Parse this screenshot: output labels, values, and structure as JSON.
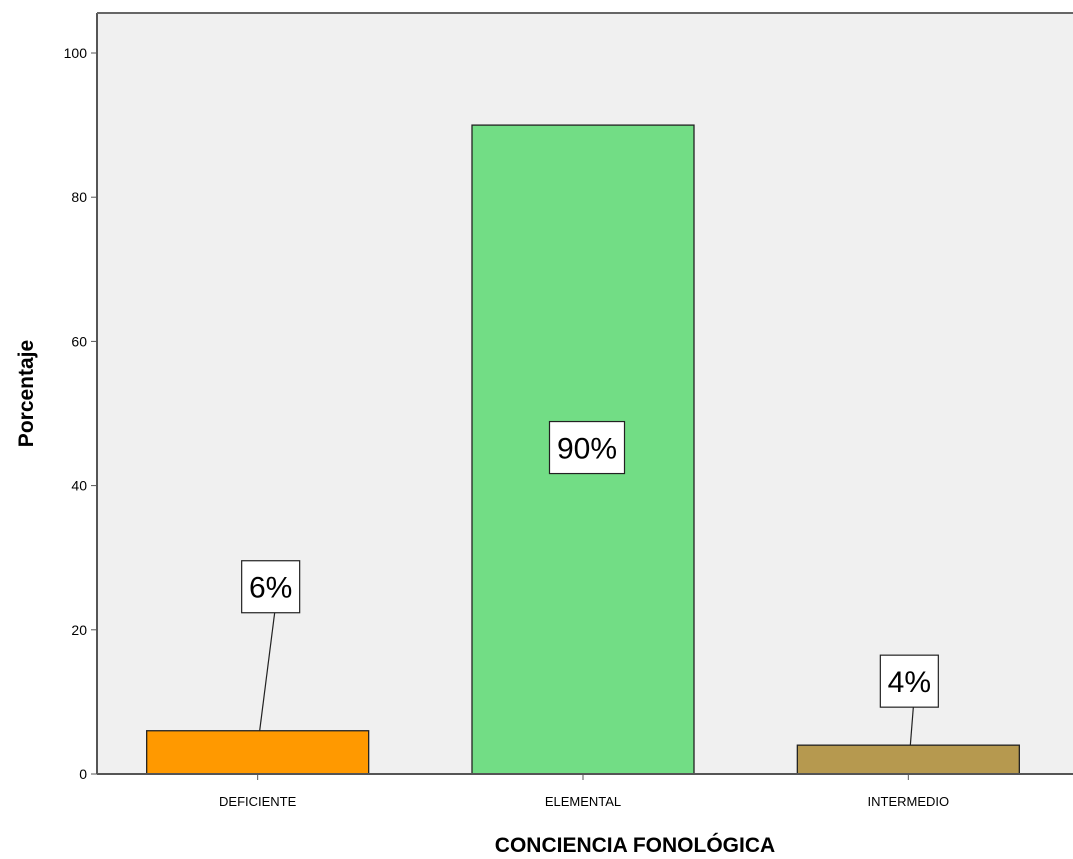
{
  "chart_data": {
    "type": "bar",
    "categories": [
      "DEFICIENTE",
      "ELEMENTAL",
      "INTERMEDIO"
    ],
    "values": [
      6,
      90,
      4
    ],
    "data_labels": [
      "6%",
      "90%",
      "4%"
    ],
    "colors": [
      "#ff9900",
      "#72dd85",
      "#b6994f"
    ],
    "xlabel": "CONCIENCIA FONOLÓGICA",
    "ylabel": "Porcentaje",
    "ylim": [
      0,
      100
    ],
    "yticks": [
      0,
      20,
      40,
      60,
      80,
      100
    ],
    "ytick_labels": [
      "0",
      "20",
      "40",
      "60",
      "80",
      "100"
    ],
    "grid": false,
    "plot_background": "#f0f0f0"
  }
}
